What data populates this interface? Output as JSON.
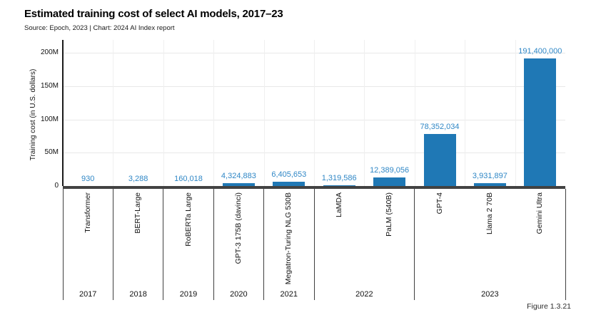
{
  "header": {
    "title": "Estimated training cost of select AI models, 2017–23",
    "source": "Source: Epoch, 2023 | Chart: 2024 AI Index report"
  },
  "footer": {
    "figure_label": "Figure 1.3.21"
  },
  "colors": {
    "bar": "#1f78b5",
    "value_label": "#2f87c6",
    "gridline": "#e8e8e8",
    "axis": "#424242"
  },
  "chart_data": {
    "type": "bar",
    "title": "Estimated training cost of select AI models, 2017–23",
    "xlabel": "",
    "ylabel": "Training cost (in U.S. dollars)",
    "ylim": [
      0,
      200000000
    ],
    "grid": true,
    "legend": "none",
    "y_ticks": [
      {
        "value": 0,
        "label": "0"
      },
      {
        "value": 50000000,
        "label": "50M"
      },
      {
        "value": 100000000,
        "label": "100M"
      },
      {
        "value": 150000000,
        "label": "150M"
      },
      {
        "value": 200000000,
        "label": "200M"
      }
    ],
    "models": [
      {
        "name": "Transformer",
        "year": "2017",
        "value": 930,
        "value_label": "930"
      },
      {
        "name": "BERT-Large",
        "year": "2018",
        "value": 3288,
        "value_label": "3,288"
      },
      {
        "name": "RoBERTa Large",
        "year": "2019",
        "value": 160018,
        "value_label": "160,018"
      },
      {
        "name": "GPT-3 175B (davinci)",
        "year": "2020",
        "value": 4324883,
        "value_label": "4,324,883"
      },
      {
        "name": "Megatron-Turing NLG 530B",
        "year": "2021",
        "value": 6405653,
        "value_label": "6,405,653"
      },
      {
        "name": "LaMDA",
        "year": "2022",
        "value": 1319586,
        "value_label": "1,319,586"
      },
      {
        "name": "PaLM (540B)",
        "year": "2022",
        "value": 12389056,
        "value_label": "12,389,056"
      },
      {
        "name": "GPT-4",
        "year": "2023",
        "value": 78352034,
        "value_label": "78,352,034"
      },
      {
        "name": "Llama 2 70B",
        "year": "2023",
        "value": 3931897,
        "value_label": "3,931,897"
      },
      {
        "name": "Gemini Ultra",
        "year": "2023",
        "value": 191400000,
        "value_label": "191,400,000"
      }
    ]
  }
}
